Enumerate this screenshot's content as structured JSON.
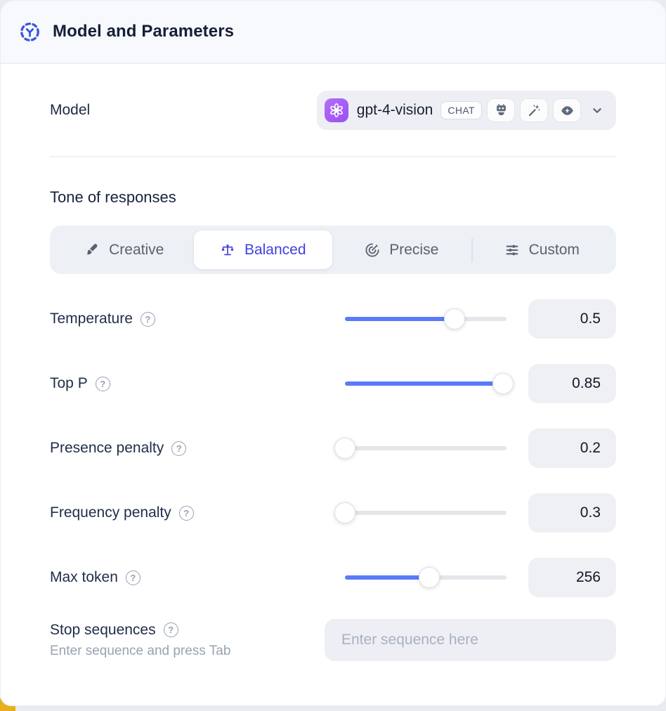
{
  "header": {
    "title": "Model and Parameters",
    "icon": "model-hub-icon"
  },
  "model_section": {
    "label": "Model",
    "selector": {
      "provider_icon": "openai-logo",
      "model_name": "gpt-4-vision",
      "type_badge": "CHAT",
      "capability_icons": [
        "robot-icon",
        "wand-sparkles-icon",
        "eye-icon"
      ]
    }
  },
  "tone_section": {
    "heading": "Tone of responses",
    "options": [
      {
        "label": "Creative",
        "icon": "brush-icon",
        "selected": false
      },
      {
        "label": "Balanced",
        "icon": "balance-scale-icon",
        "selected": true
      },
      {
        "label": "Precise",
        "icon": "dart-target-icon",
        "selected": false
      },
      {
        "label": "Custom",
        "icon": "sliders-icon",
        "selected": false
      }
    ]
  },
  "parameters": [
    {
      "label": "Temperature",
      "value": "0.5",
      "slider_pct": 68
    },
    {
      "label": "Top P",
      "value": "0.85",
      "slider_pct": 98
    },
    {
      "label": "Presence penalty",
      "value": "0.2",
      "slider_pct": 0
    },
    {
      "label": "Frequency penalty",
      "value": "0.3",
      "slider_pct": 0
    },
    {
      "label": "Max token",
      "value": "256",
      "slider_pct": 52
    }
  ],
  "stop_sequences": {
    "label": "Stop sequences",
    "hint": "Enter sequence and press Tab",
    "placeholder": "Enter sequence here"
  },
  "colors": {
    "accent_blue": "#433ee0",
    "slider_blue": "#5a7bf7",
    "header_bg": "#f8f9fc",
    "panel_gray": "#edeff4",
    "provider_purple": "#a55bf6",
    "corner_yellow": "#e7af1b",
    "text_dark": "#141f38",
    "text_muted": "#59626f"
  }
}
